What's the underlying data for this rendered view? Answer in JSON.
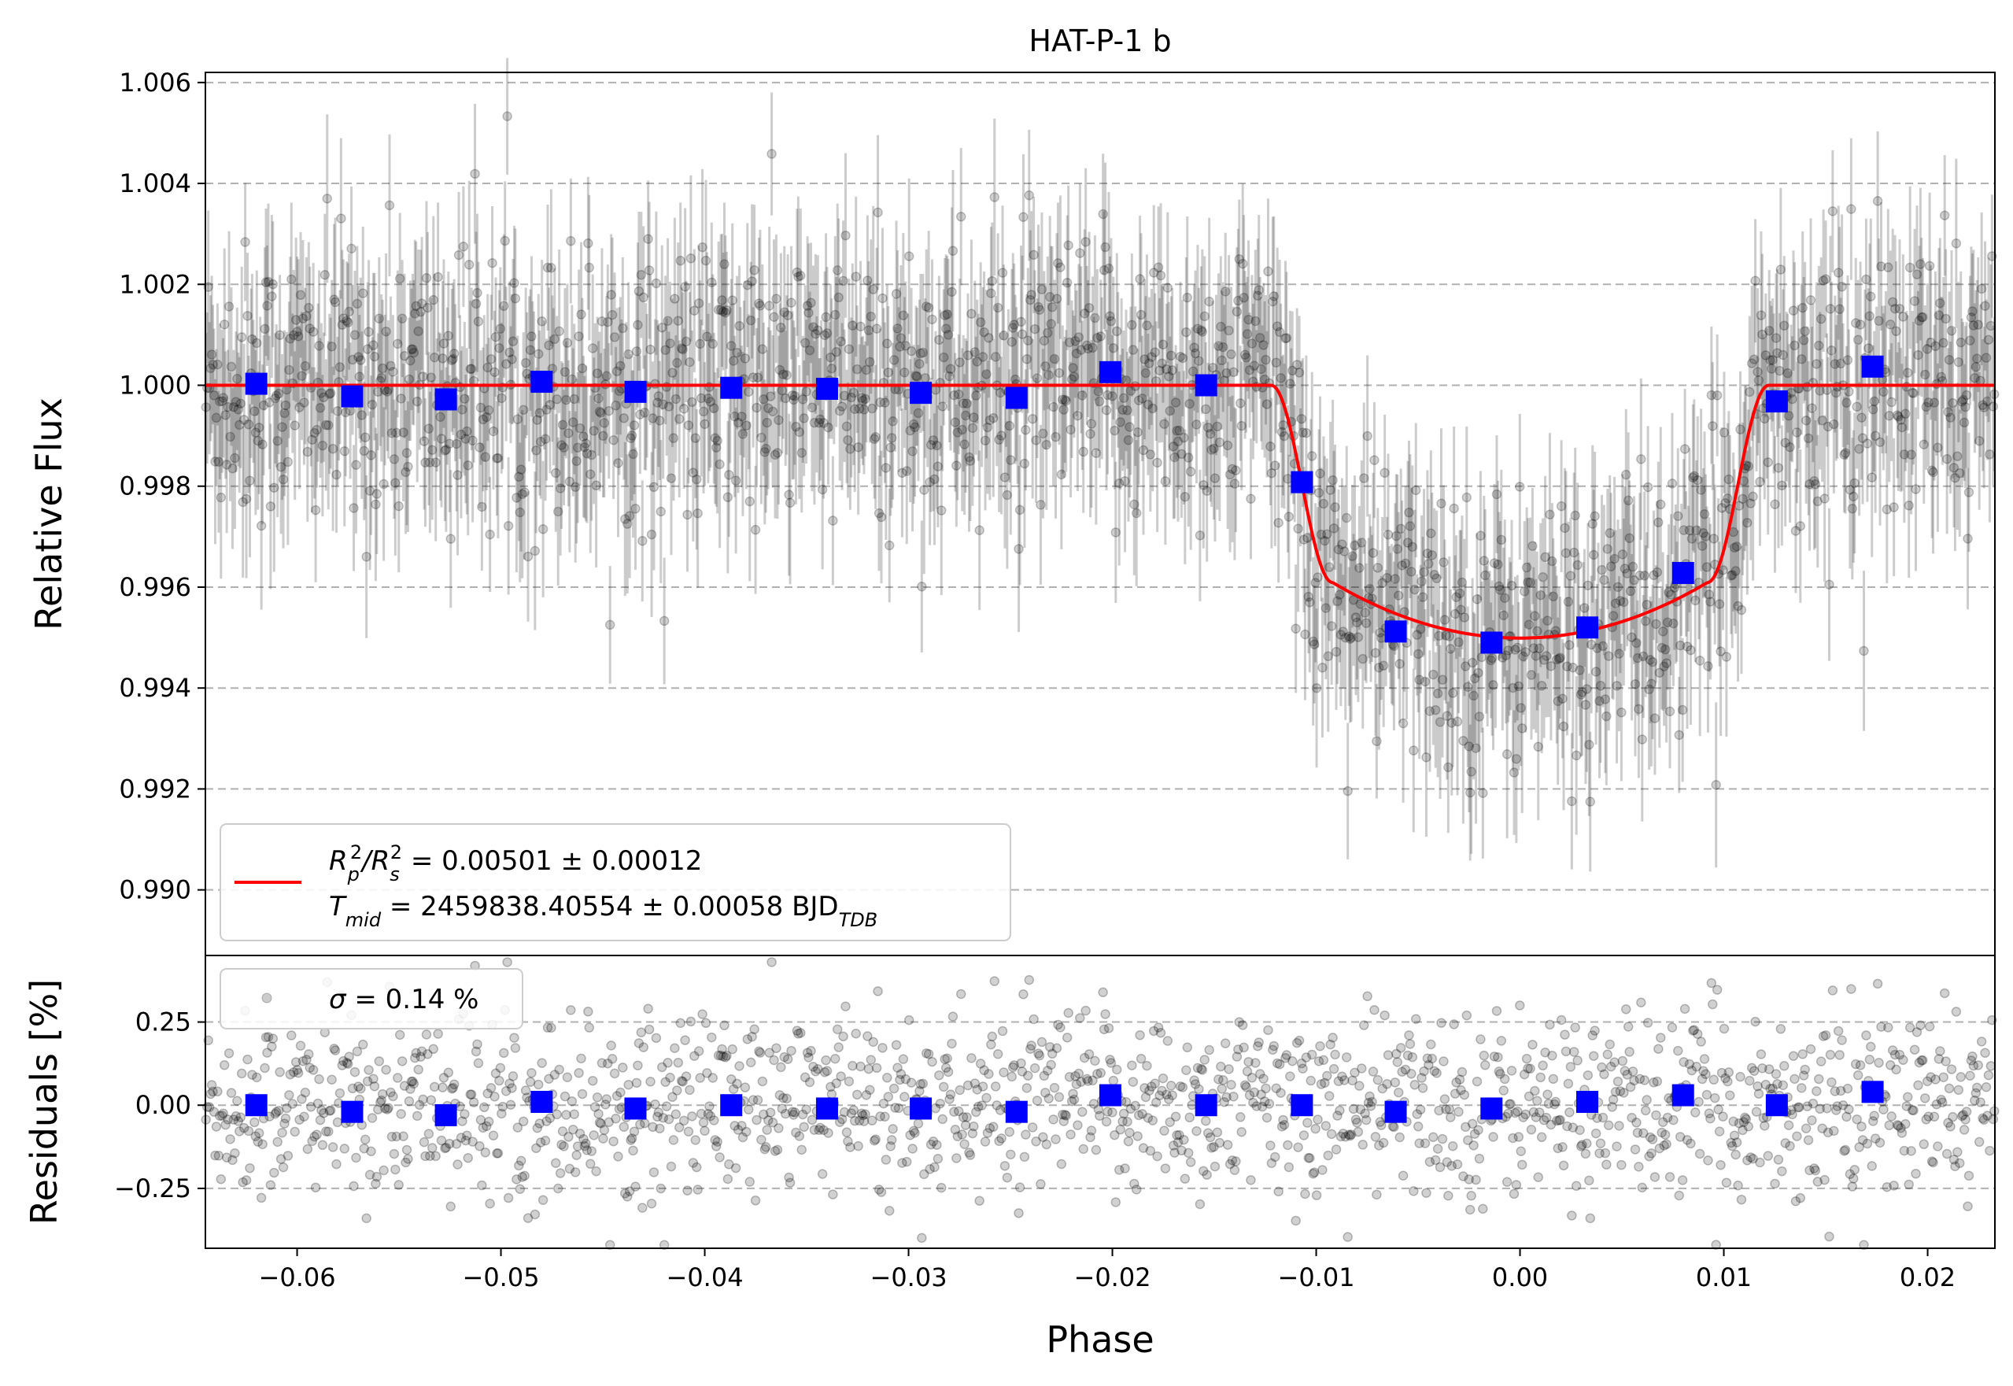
{
  "chart_data": [
    {
      "id": "main",
      "type": "scatter",
      "title": "HAT-P-1 b",
      "xlabel": "",
      "ylabel": "Relative Flux",
      "xlim": [
        -0.0645,
        0.0233
      ],
      "ylim": [
        0.9887,
        1.0062
      ],
      "yticks": [
        "1.006",
        "1.004",
        "1.002",
        "1.000",
        "0.998",
        "0.996",
        "0.994",
        "0.992",
        "0.990"
      ],
      "ytick_values": [
        1.006,
        1.004,
        1.002,
        1.0,
        0.998,
        0.996,
        0.994,
        0.992,
        0.99
      ],
      "grid": "y-dashed",
      "raw_points_description_free": true,
      "raw_sigma": 0.0014,
      "raw_errorbar": 0.0014,
      "binned": {
        "x": [
          -0.062,
          -0.0573,
          -0.0527,
          -0.048,
          -0.0434,
          -0.0387,
          -0.034,
          -0.0294,
          -0.0247,
          -0.0201,
          -0.0154,
          -0.0107,
          -0.0061,
          -0.0014,
          0.0033,
          0.008,
          0.0126,
          0.0173
        ],
        "y": [
          1.00003,
          0.99978,
          0.99972,
          1.00007,
          0.99987,
          0.99995,
          0.99993,
          0.99985,
          0.99975,
          1.00026,
          1.0,
          0.99808,
          0.99512,
          0.9949,
          0.9952,
          0.99628,
          0.99968,
          1.00037
        ],
        "color": "#0000ff"
      },
      "model": {
        "depth": 0.00501,
        "t_mid": 0.0,
        "t_contact_outer": 0.0122,
        "t_contact_inner": 0.0092,
        "color": "#ff0000"
      },
      "legend": {
        "location": "lower-left",
        "line1_a": "R",
        "line1_sub_p": "p",
        "line1_sup": "2",
        "line1_slash": "/R",
        "line1_sub_s": "s",
        "line1_rest": " = 0.00501 ± 0.00012",
        "line2_a": "T",
        "line2_sub": "mid",
        "line2_rest": " = 2459838.40554 ± 0.00058 BJD",
        "line2_sub2": "TDB"
      }
    },
    {
      "id": "residuals",
      "type": "scatter",
      "xlabel": "Phase",
      "ylabel": "Residuals [%]",
      "xlim": [
        -0.0645,
        0.0233
      ],
      "ylim": [
        -0.43,
        0.45
      ],
      "yticks": [
        "0.25",
        "0.00",
        "−0.25"
      ],
      "ytick_values": [
        0.25,
        0.0,
        -0.25
      ],
      "xticks": [
        "−0.06",
        "−0.05",
        "−0.04",
        "−0.03",
        "−0.02",
        "−0.01",
        "0.00",
        "0.01",
        "0.02"
      ],
      "xtick_values": [
        -0.06,
        -0.05,
        -0.04,
        -0.03,
        -0.02,
        -0.01,
        0.0,
        0.01,
        0.02
      ],
      "grid": "y-dashed",
      "raw_sigma": 0.14,
      "binned_y": [
        0.0,
        -0.02,
        -0.03,
        0.01,
        -0.01,
        -0.0,
        -0.01,
        -0.01,
        -0.02,
        0.03,
        0.0,
        0.0,
        -0.02,
        -0.01,
        0.01,
        0.03,
        0.0,
        0.04
      ],
      "legend": {
        "location": "top-left",
        "label_symbol": "σ",
        "label_rest": " = 0.14 %"
      }
    }
  ],
  "colors": {
    "raw": "#000000",
    "binned": "#0000ff",
    "model": "#ff0000",
    "grid": "#b0b0b0"
  }
}
